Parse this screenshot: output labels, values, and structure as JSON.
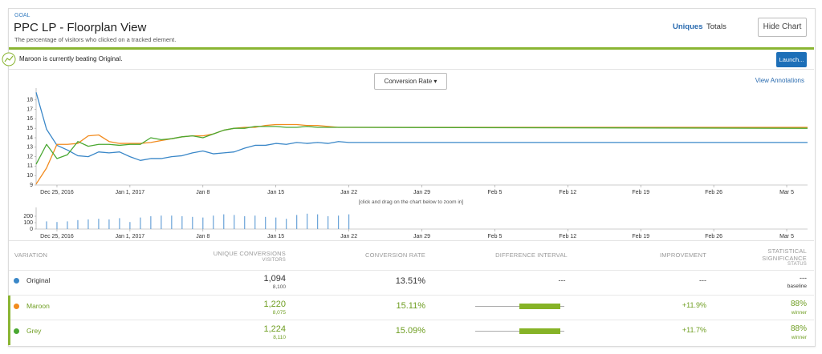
{
  "header": {
    "label": "GOAL",
    "title": "PPC LP - Floorplan View",
    "subtitle": "The percentage of visitors who clicked on a tracked element.",
    "tabs": [
      "Uniques",
      "Totals"
    ],
    "button": "Hide Chart"
  },
  "banner": {
    "message": "Maroon is currently beating Original.",
    "button": "Launch..."
  },
  "chart_controls": {
    "metric": "Conversion Rate",
    "link": "View Annotations",
    "hint": "[click and drag on the chart below to zoom in]"
  },
  "chart_data": [
    {
      "type": "line",
      "x": [
        "2016-12-23",
        "2016-12-24",
        "2016-12-25",
        "2016-12-26",
        "2016-12-27",
        "2016-12-28",
        "2016-12-29",
        "2016-12-30",
        "2016-12-31",
        "2017-01-01",
        "2017-01-02",
        "2017-01-03",
        "2017-01-04",
        "2017-01-05",
        "2017-01-06",
        "2017-01-07",
        "2017-01-08",
        "2017-01-09",
        "2017-01-10",
        "2017-01-11",
        "2017-01-12",
        "2017-01-13",
        "2017-01-14",
        "2017-01-15",
        "2017-01-16",
        "2017-01-17",
        "2017-01-18",
        "2017-01-19",
        "2017-01-20",
        "2017-01-21",
        "2017-01-22",
        "2017-03-07"
      ],
      "series": [
        {
          "name": "Original",
          "color": "#3a87c8",
          "values": [
            18.8,
            14.9,
            13.2,
            12.7,
            12.1,
            12.0,
            12.5,
            12.4,
            12.5,
            12.0,
            11.6,
            11.8,
            11.8,
            12.0,
            12.1,
            12.4,
            12.6,
            12.3,
            12.4,
            12.5,
            12.9,
            13.2,
            13.2,
            13.4,
            13.3,
            13.5,
            13.4,
            13.5,
            13.4,
            13.6,
            13.5,
            13.5
          ]
        },
        {
          "name": "Maroon",
          "color": "#f28b1e",
          "values": [
            9.1,
            10.8,
            13.3,
            13.3,
            13.4,
            14.2,
            14.3,
            13.6,
            13.4,
            13.4,
            13.4,
            13.5,
            13.7,
            13.9,
            14.1,
            14.2,
            14.2,
            14.4,
            14.8,
            15.0,
            15.1,
            15.1,
            15.3,
            15.4,
            15.4,
            15.4,
            15.3,
            15.3,
            15.2,
            15.1,
            15.1,
            15.1
          ]
        },
        {
          "name": "Grey",
          "color": "#4aa832",
          "values": [
            11.2,
            13.3,
            11.8,
            12.2,
            13.6,
            13.1,
            13.3,
            13.3,
            13.2,
            13.3,
            13.3,
            14.0,
            13.8,
            13.9,
            14.1,
            14.2,
            14.0,
            14.4,
            14.8,
            15.0,
            15.0,
            15.2,
            15.2,
            15.2,
            15.1,
            15.1,
            15.2,
            15.1,
            15.1,
            15.1,
            15.1,
            15.0
          ]
        }
      ],
      "xlim": [
        "2016-12-23",
        "2017-03-07"
      ],
      "xticks": [
        {
          "value": "2016-12-25",
          "label": "Dec 25, 2016"
        },
        {
          "value": "2017-01-01",
          "label": "Jan 1, 2017"
        },
        {
          "value": "2017-01-08",
          "label": "Jan 8"
        },
        {
          "value": "2017-01-15",
          "label": "Jan 15"
        },
        {
          "value": "2017-01-22",
          "label": "Jan 22"
        },
        {
          "value": "2017-01-29",
          "label": "Jan 29"
        },
        {
          "value": "2017-02-05",
          "label": "Feb 5"
        },
        {
          "value": "2017-02-12",
          "label": "Feb 12"
        },
        {
          "value": "2017-02-19",
          "label": "Feb 19"
        },
        {
          "value": "2017-02-26",
          "label": "Feb 26"
        },
        {
          "value": "2017-03-05",
          "label": "Mar 5"
        }
      ],
      "ylim": [
        9,
        19
      ],
      "yticks": [
        9,
        10,
        11,
        12,
        13,
        14,
        15,
        16,
        17,
        18
      ]
    },
    {
      "type": "bar",
      "x": [
        "2016-12-24",
        "2016-12-25",
        "2016-12-26",
        "2016-12-27",
        "2016-12-28",
        "2016-12-29",
        "2016-12-30",
        "2016-12-31",
        "2017-01-01",
        "2017-01-02",
        "2017-01-03",
        "2017-01-04",
        "2017-01-05",
        "2017-01-06",
        "2017-01-07",
        "2017-01-08",
        "2017-01-09",
        "2017-01-10",
        "2017-01-11",
        "2017-01-12",
        "2017-01-13",
        "2017-01-14",
        "2017-01-15",
        "2017-01-16",
        "2017-01-17",
        "2017-01-18",
        "2017-01-19",
        "2017-01-20",
        "2017-01-21",
        "2017-01-22"
      ],
      "values": [
        120,
        110,
        120,
        140,
        150,
        160,
        150,
        170,
        110,
        180,
        200,
        210,
        210,
        200,
        190,
        180,
        210,
        230,
        220,
        200,
        210,
        190,
        180,
        160,
        220,
        240,
        230,
        200,
        210,
        230
      ],
      "color": "#6aa3d8",
      "xlim": [
        "2016-12-23",
        "2017-03-07"
      ],
      "xticks": [
        {
          "value": "2016-12-25",
          "label": "Dec 25, 2016"
        },
        {
          "value": "2017-01-01",
          "label": "Jan 1, 2017"
        },
        {
          "value": "2017-01-08",
          "label": "Jan 8"
        },
        {
          "value": "2017-01-15",
          "label": "Jan 15"
        },
        {
          "value": "2017-01-22",
          "label": "Jan 22"
        },
        {
          "value": "2017-01-29",
          "label": "Jan 29"
        },
        {
          "value": "2017-02-05",
          "label": "Feb 5"
        },
        {
          "value": "2017-02-12",
          "label": "Feb 12"
        },
        {
          "value": "2017-02-19",
          "label": "Feb 19"
        },
        {
          "value": "2017-02-26",
          "label": "Feb 26"
        },
        {
          "value": "2017-03-05",
          "label": "Mar 5"
        }
      ],
      "ylim": [
        0,
        300
      ],
      "yticks": [
        0,
        100,
        200
      ]
    }
  ],
  "table": {
    "columns": [
      {
        "label": "VARIATION"
      },
      {
        "label": "UNIQUE CONVERSIONS",
        "sublabel": "VISITORS"
      },
      {
        "label": "CONVERSION RATE"
      },
      {
        "label": "DIFFERENCE INTERVAL"
      },
      {
        "label": "IMPROVEMENT"
      },
      {
        "label": "STATISTICAL SIGNIFICANCE",
        "sublabel": "STATUS"
      }
    ],
    "rows": [
      {
        "conversions": "1,094",
        "visitors": "8,100",
        "rate": "13.51%",
        "interval": "---",
        "improvement": "---",
        "significance": "---",
        "status": "baseline"
      },
      {
        "conversions": "1,220",
        "visitors": "8,075",
        "rate": "15.11%",
        "improvement": "+11.9%",
        "significance": "88%",
        "status": "winner"
      },
      {
        "conversions": "1,224",
        "visitors": "8,110",
        "rate": "15.09%",
        "improvement": "+11.7%",
        "significance": "88%",
        "status": "winner"
      }
    ]
  }
}
